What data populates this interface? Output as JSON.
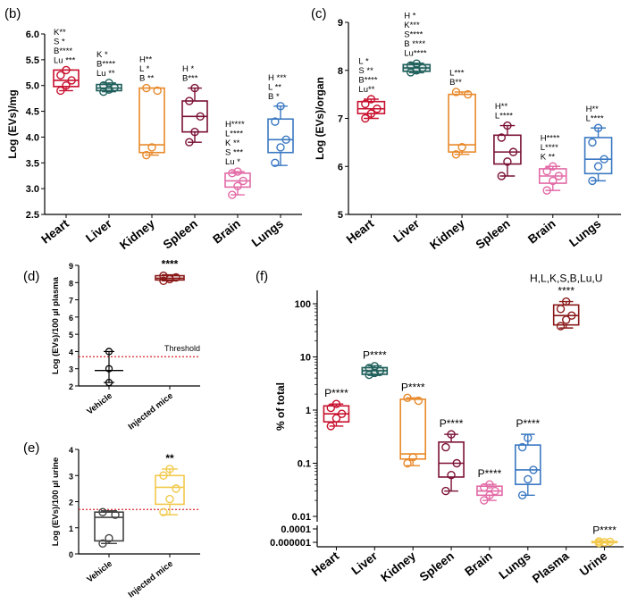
{
  "panels": {
    "b": "(b)",
    "c": "(c)",
    "d": "(d)",
    "e": "(e)",
    "f": "(f)"
  },
  "threshold_label": "Threshold",
  "chart_data": [
    {
      "id": "b",
      "type": "box",
      "ylabel": "Log (EVs)/mg",
      "ylim": [
        2.5,
        6.0
      ],
      "yticks": [
        "2.5",
        "3.0",
        "3.5",
        "4.0",
        "4.5",
        "5.0",
        "5.5",
        "6.0"
      ],
      "categories": [
        "Heart",
        "Liver",
        "Kidney",
        "Spleen",
        "Brain",
        "Lungs"
      ],
      "colors": [
        "#c8102e",
        "#1f5f5b",
        "#e8892a",
        "#7a1035",
        "#e26aa6",
        "#3a78c2"
      ],
      "boxes": [
        {
          "min": 4.9,
          "q1": 4.98,
          "median": 5.1,
          "q3": 5.3,
          "max": 5.3,
          "points": [
            4.9,
            5.0,
            5.1,
            5.2,
            5.3
          ]
        },
        {
          "min": 4.88,
          "q1": 4.9,
          "median": 4.95,
          "q3": 5.02,
          "max": 5.05,
          "points": [
            4.88,
            4.92,
            4.96,
            5.0,
            5.05
          ]
        },
        {
          "min": 3.65,
          "q1": 3.7,
          "median": 3.85,
          "q3": 4.95,
          "max": 4.95,
          "points": [
            3.65,
            3.8,
            4.9,
            4.95
          ]
        },
        {
          "min": 3.9,
          "q1": 4.1,
          "median": 4.4,
          "q3": 4.7,
          "max": 4.95,
          "points": [
            3.9,
            4.1,
            4.4,
            4.7,
            4.95
          ]
        },
        {
          "min": 2.88,
          "q1": 3.03,
          "median": 3.15,
          "q3": 3.3,
          "max": 3.33,
          "points": [
            2.88,
            3.05,
            3.15,
            3.3,
            3.33
          ]
        },
        {
          "min": 3.45,
          "q1": 3.7,
          "median": 3.95,
          "q3": 4.35,
          "max": 4.6,
          "points": [
            3.5,
            3.8,
            3.95,
            4.3,
            4.6
          ]
        }
      ],
      "annotations": [
        [
          "K**",
          "S *",
          "B****",
          "Lu ***"
        ],
        [
          "K *",
          "B****",
          "Lu **"
        ],
        [
          "H**",
          "L *",
          "B **"
        ],
        [
          "H *",
          "B***"
        ],
        [
          "H****",
          "L****",
          "K **",
          "S ***",
          "Lu *"
        ],
        [
          "H ***",
          "L **",
          "B *"
        ]
      ]
    },
    {
      "id": "c",
      "type": "box",
      "ylabel": "Log (EVs)/organ",
      "ylim": [
        5,
        9
      ],
      "yticks": [
        "5",
        "6",
        "7",
        "8",
        "9"
      ],
      "categories": [
        "Heart",
        "Liver",
        "Kidney",
        "Spleen",
        "Brain",
        "Lungs"
      ],
      "colors": [
        "#c8102e",
        "#1f5f5b",
        "#e8892a",
        "#7a1035",
        "#e26aa6",
        "#3a78c2"
      ],
      "boxes": [
        {
          "min": 7.0,
          "q1": 7.1,
          "median": 7.2,
          "q3": 7.35,
          "max": 7.4,
          "points": [
            7.0,
            7.1,
            7.2,
            7.3,
            7.4
          ]
        },
        {
          "min": 7.95,
          "q1": 7.98,
          "median": 8.05,
          "q3": 8.12,
          "max": 8.15,
          "points": [
            7.96,
            8.0,
            8.05,
            8.1,
            8.14
          ]
        },
        {
          "min": 6.25,
          "q1": 6.3,
          "median": 6.45,
          "q3": 7.5,
          "max": 7.55,
          "points": [
            6.25,
            6.4,
            7.5,
            7.55
          ]
        },
        {
          "min": 5.8,
          "q1": 6.05,
          "median": 6.3,
          "q3": 6.65,
          "max": 6.85,
          "points": [
            5.8,
            6.1,
            6.3,
            6.6,
            6.85
          ]
        },
        {
          "min": 5.5,
          "q1": 5.65,
          "median": 5.8,
          "q3": 5.95,
          "max": 6.0,
          "points": [
            5.5,
            5.7,
            5.8,
            5.9,
            6.0
          ]
        },
        {
          "min": 5.7,
          "q1": 5.85,
          "median": 6.15,
          "q3": 6.6,
          "max": 6.8,
          "points": [
            5.7,
            6.0,
            6.15,
            6.5,
            6.8
          ]
        }
      ],
      "annotations": [
        [
          "L *",
          "S **",
          "B****",
          "Lu**"
        ],
        [
          "H *",
          "K***",
          "S****",
          "B ****",
          "Lu****"
        ],
        [
          "L***",
          "B**"
        ],
        [
          "H**",
          "L****"
        ],
        [
          "H****",
          "L****",
          "K **"
        ],
        [
          "H**",
          "L****"
        ]
      ]
    },
    {
      "id": "d",
      "type": "box",
      "ylabel": "Log (EVs)/100 µl plasma",
      "ylim": [
        2,
        9
      ],
      "yticks": [
        "2",
        "3",
        "4",
        "5",
        "6",
        "7",
        "8",
        "9"
      ],
      "categories": [
        "Vehicle",
        "Injected mice"
      ],
      "colors": [
        "#000000",
        "#8b1a1a"
      ],
      "threshold": 3.7,
      "boxes": [
        {
          "min": 2.2,
          "q1": 2.9,
          "median": 2.9,
          "q3": 2.9,
          "max": 4.0,
          "points": [
            2.2,
            3.0,
            4.0
          ],
          "style": "whisker"
        },
        {
          "min": 8.1,
          "q1": 8.15,
          "median": 8.25,
          "q3": 8.4,
          "max": 8.45,
          "points": [
            8.1,
            8.2,
            8.3,
            8.4
          ]
        }
      ],
      "annotations": [
        [],
        [
          "****"
        ]
      ]
    },
    {
      "id": "e",
      "type": "box",
      "ylabel": "Log (EVs)/100 µl urine",
      "ylim": [
        0,
        4
      ],
      "yticks": [
        "0",
        "1",
        "2",
        "3",
        "4"
      ],
      "categories": [
        "Vehicle",
        "Injected mice"
      ],
      "colors": [
        "#444444",
        "#f2c94c"
      ],
      "threshold": 1.7,
      "boxes": [
        {
          "min": 0.4,
          "q1": 0.5,
          "median": 1.4,
          "q3": 1.6,
          "max": 1.65,
          "points": [
            0.4,
            0.6,
            1.5,
            1.6
          ]
        },
        {
          "min": 1.5,
          "q1": 1.9,
          "median": 2.55,
          "q3": 3.0,
          "max": 3.25,
          "points": [
            1.6,
            2.1,
            2.5,
            3.0,
            3.25
          ]
        }
      ],
      "annotations": [
        [],
        [
          "**"
        ]
      ]
    },
    {
      "id": "f",
      "type": "box",
      "yscale": "log",
      "ylabel": "% of total",
      "yticks": [
        "100",
        "10",
        "1",
        "0.1",
        "0.01",
        "0.0001",
        "0.000001"
      ],
      "categories": [
        "Heart",
        "Liver",
        "Kidney",
        "Spleen",
        "Brain",
        "Lungs",
        "Plasma",
        "Urine"
      ],
      "colors": [
        "#c8102e",
        "#1f5f5b",
        "#e8892a",
        "#7a1035",
        "#e26aa6",
        "#3a78c2",
        "#8b1a1a",
        "#f2c94c"
      ],
      "boxes": [
        {
          "min": 0.5,
          "q1": 0.6,
          "median": 0.85,
          "q3": 1.2,
          "max": 1.3,
          "points": [
            0.5,
            0.7,
            0.85,
            1.1,
            1.3
          ]
        },
        {
          "min": 4.5,
          "q1": 4.7,
          "median": 5.5,
          "q3": 6.3,
          "max": 6.8,
          "points": [
            4.6,
            5.0,
            5.5,
            6.2,
            6.7
          ]
        },
        {
          "min": 0.09,
          "q1": 0.12,
          "median": 0.15,
          "q3": 1.6,
          "max": 1.7,
          "points": [
            0.1,
            0.13,
            1.5,
            1.7
          ]
        },
        {
          "min": 0.03,
          "q1": 0.055,
          "median": 0.1,
          "q3": 0.25,
          "max": 0.35,
          "points": [
            0.03,
            0.06,
            0.1,
            0.2,
            0.35
          ]
        },
        {
          "min": 0.02,
          "q1": 0.025,
          "median": 0.03,
          "q3": 0.037,
          "max": 0.04,
          "points": [
            0.02,
            0.025,
            0.03,
            0.035,
            0.04
          ]
        },
        {
          "min": 0.025,
          "q1": 0.04,
          "median": 0.075,
          "q3": 0.22,
          "max": 0.35,
          "points": [
            0.025,
            0.05,
            0.075,
            0.2,
            0.3
          ]
        },
        null,
        {
          "min": 8e-07,
          "q1": 9e-07,
          "median": 1.1e-06,
          "q3": 1.3e-06,
          "max": 1.6e-06,
          "points": [
            8e-07,
            1e-06,
            1.2e-06,
            1.4e-06
          ]
        }
      ],
      "extra_box": {
        "label_above": "H,L,K,S,B,Lu,U",
        "stars": "****",
        "min": 35,
        "q1": 40,
        "median": 60,
        "q3": 95,
        "max": 110,
        "points": [
          38,
          50,
          60,
          80,
          110
        ]
      },
      "annotations": [
        "P****",
        "P****",
        "P****",
        "P****",
        "P****",
        "P****",
        "",
        "P****"
      ]
    }
  ]
}
